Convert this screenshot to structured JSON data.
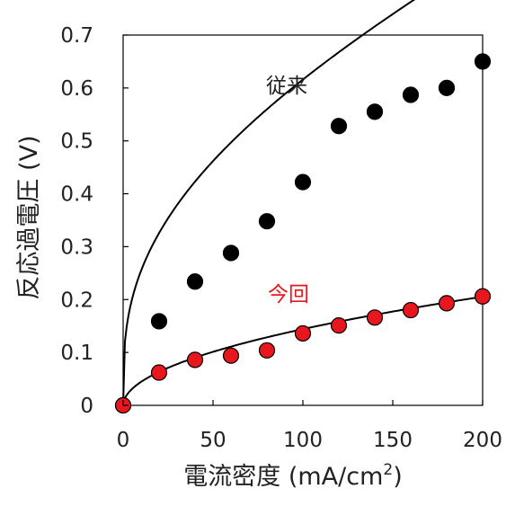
{
  "chart_data": {
    "type": "scatter",
    "xlabel": "電流密度 (mA/cm",
    "xlabel_sup": "2",
    "xlabel_close": ")",
    "ylabel": "反応過電圧 (V)",
    "xlim": [
      0,
      200
    ],
    "ylim": [
      0,
      0.7
    ],
    "x_ticks": [
      {
        "value": 0,
        "label": "0"
      },
      {
        "value": 50,
        "label": "50"
      },
      {
        "value": 100,
        "label": "100"
      },
      {
        "value": 150,
        "label": "150"
      },
      {
        "value": 200,
        "label": "200"
      }
    ],
    "y_ticks": [
      {
        "value": 0,
        "label": "0"
      },
      {
        "value": 0.1,
        "label": "0.1"
      },
      {
        "value": 0.2,
        "label": "0.2"
      },
      {
        "value": 0.3,
        "label": "0.3"
      },
      {
        "value": 0.4,
        "label": "0.4"
      },
      {
        "value": 0.5,
        "label": "0.5"
      },
      {
        "value": 0.6,
        "label": "0.6"
      },
      {
        "value": 0.7,
        "label": "0.7"
      }
    ],
    "grid": false,
    "legend": "none",
    "series": [
      {
        "name": "従来",
        "color": "#000000",
        "points": [
          [
            0,
            0.0
          ],
          [
            20,
            0.159
          ],
          [
            40,
            0.234
          ],
          [
            60,
            0.288
          ],
          [
            80,
            0.348
          ],
          [
            100,
            0.422
          ],
          [
            120,
            0.528
          ],
          [
            140,
            0.555
          ],
          [
            160,
            0.587
          ],
          [
            180,
            0.6
          ],
          [
            200,
            0.65
          ]
        ],
        "fit": "sqrt-then-linear"
      },
      {
        "name": "今回",
        "color": "#e8171e",
        "points": [
          [
            0,
            0.0
          ],
          [
            20,
            0.062
          ],
          [
            40,
            0.086
          ],
          [
            60,
            0.094
          ],
          [
            80,
            0.104
          ],
          [
            100,
            0.136
          ],
          [
            120,
            0.151
          ],
          [
            140,
            0.166
          ],
          [
            160,
            0.18
          ],
          [
            180,
            0.193
          ],
          [
            200,
            0.206
          ]
        ],
        "fit": "power"
      }
    ]
  }
}
